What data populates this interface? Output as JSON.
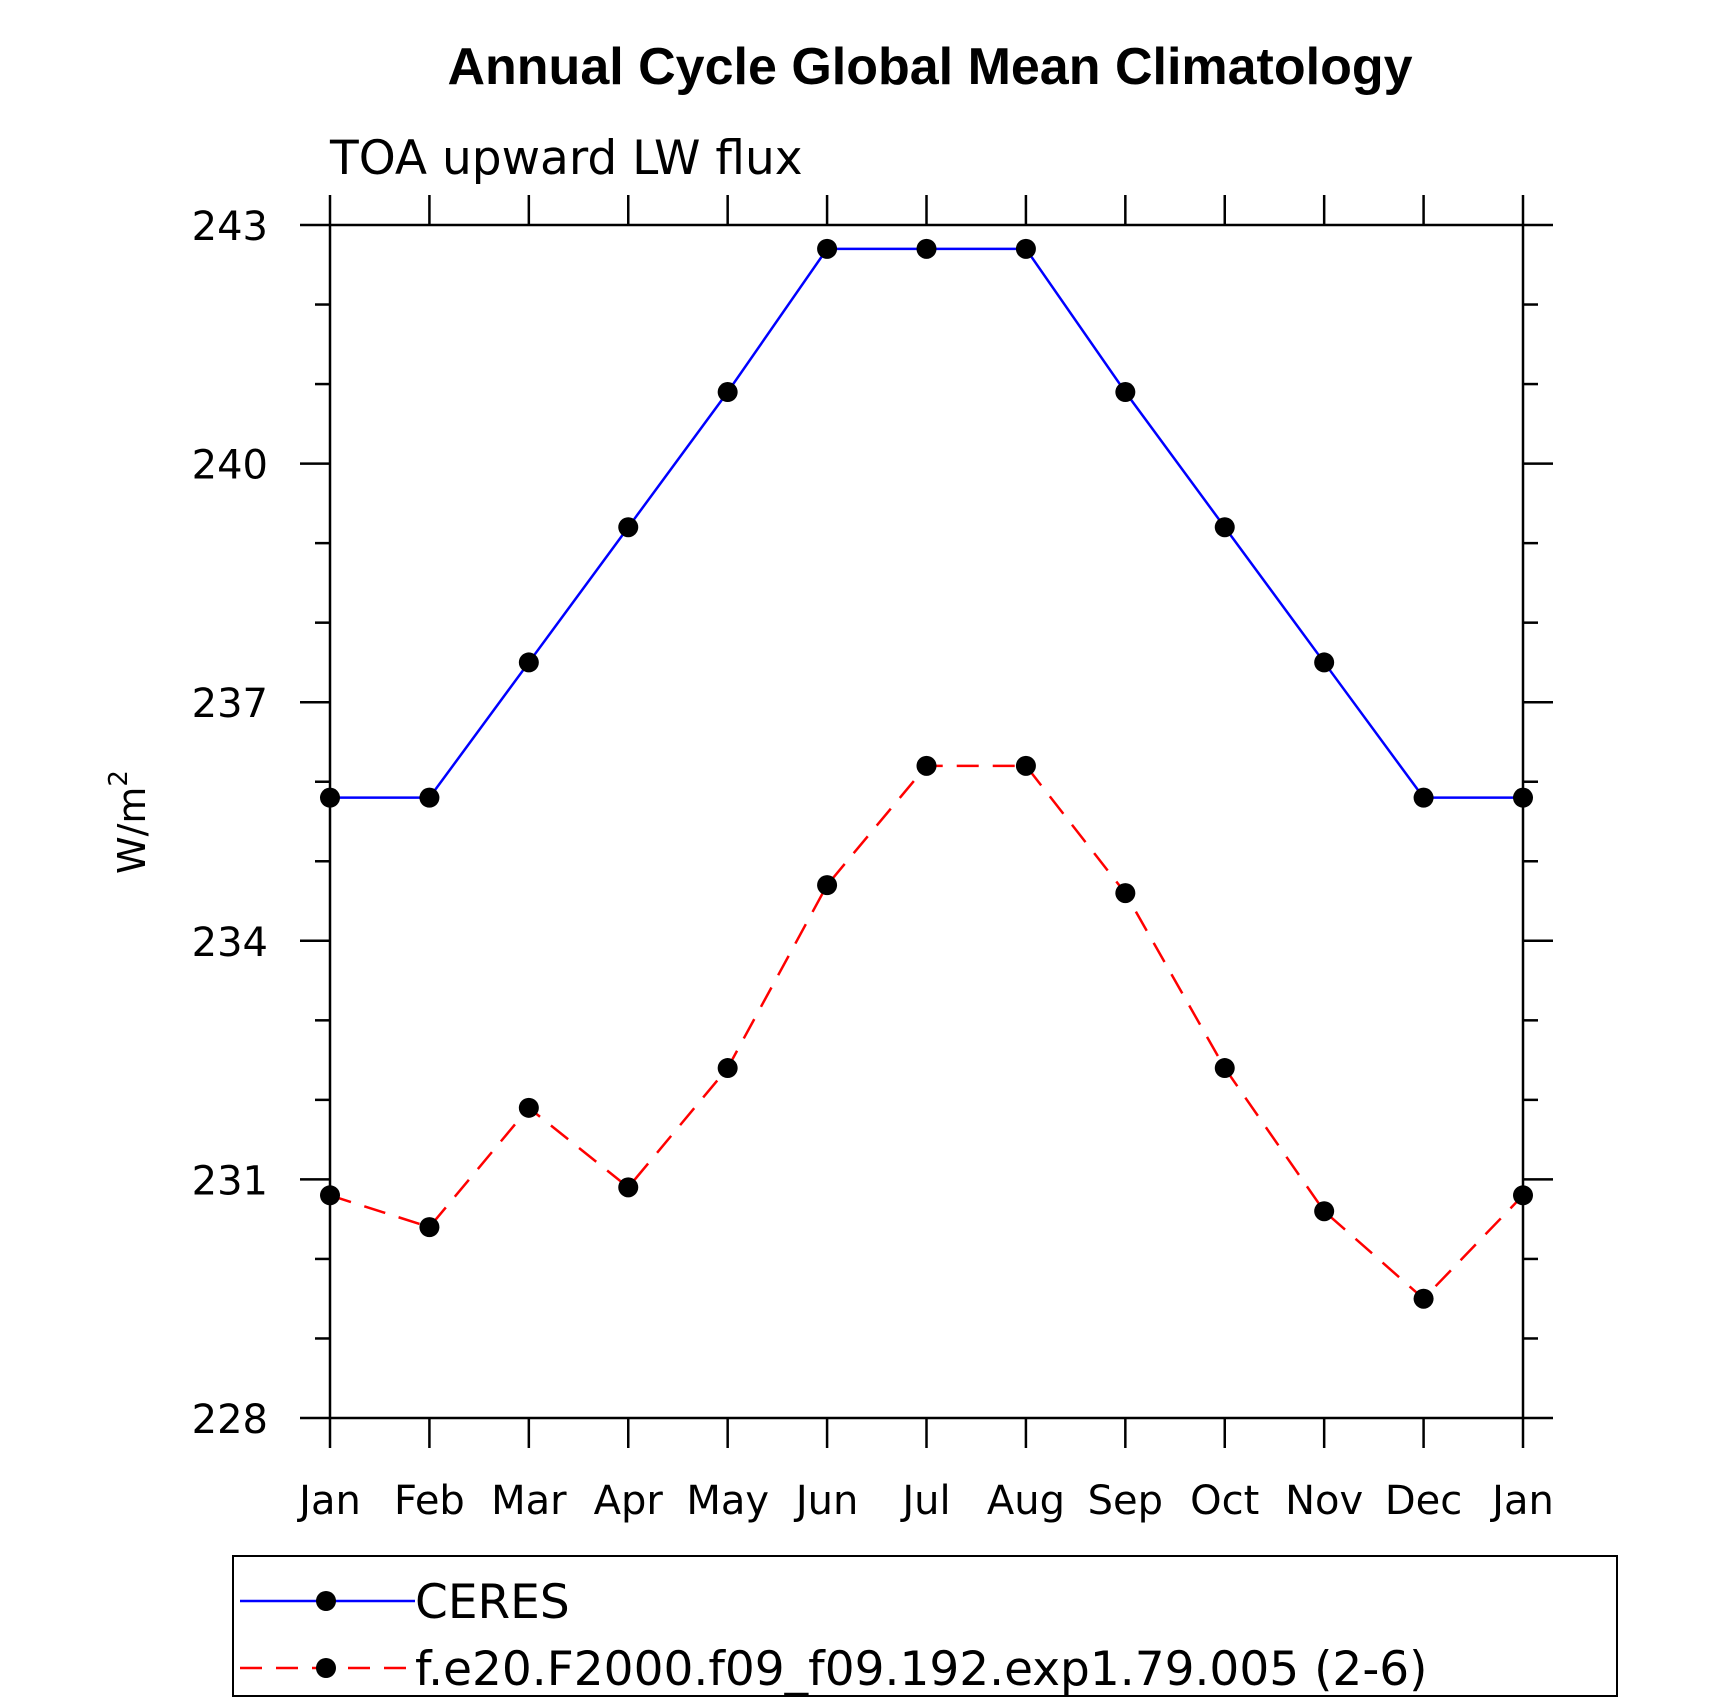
{
  "chart_data": {
    "type": "line",
    "title": "Annual Cycle Global Mean Climatology",
    "subtitle": "TOA upward LW flux",
    "xlabel": "",
    "ylabel": "W/m",
    "ylabel_superscript": "2",
    "categories": [
      "Jan",
      "Feb",
      "Mar",
      "Apr",
      "May",
      "Jun",
      "Jul",
      "Aug",
      "Sep",
      "Oct",
      "Nov",
      "Dec",
      "Jan"
    ],
    "ylim": [
      228,
      243
    ],
    "yticks": [
      228,
      231,
      234,
      237,
      240,
      243
    ],
    "yticks_minor_step": 1,
    "grid": false,
    "legend_position": "bottom",
    "series": [
      {
        "name": "CERES",
        "color": "#0000ff",
        "style": "solid",
        "marker": "filled-circle",
        "values": [
          235.8,
          235.8,
          237.5,
          239.2,
          240.9,
          242.7,
          242.7,
          242.7,
          240.9,
          239.2,
          237.5,
          235.8,
          235.8
        ]
      },
      {
        "name": "f.e20.F2000.f09_f09.192.exp1.79.005 (2-6)",
        "color": "#ff0000",
        "style": "dashed",
        "marker": "filled-circle",
        "values": [
          230.8,
          230.4,
          231.9,
          230.9,
          232.4,
          234.7,
          236.2,
          236.2,
          234.6,
          232.4,
          230.6,
          229.5,
          230.8
        ]
      }
    ]
  }
}
